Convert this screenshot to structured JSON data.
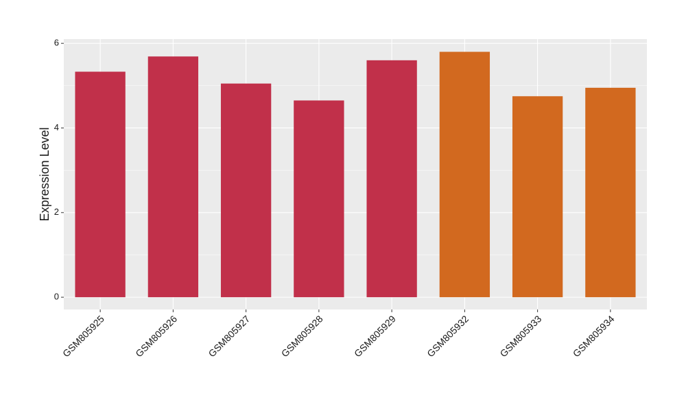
{
  "chart_data": {
    "type": "bar",
    "y_label": "Expression Level",
    "categories": [
      "GSM805925",
      "GSM805926",
      "GSM805927",
      "GSM805928",
      "GSM805929",
      "GSM805932",
      "GSM805933",
      "GSM805934"
    ],
    "values": [
      5.33,
      5.69,
      5.05,
      4.65,
      5.6,
      5.8,
      4.75,
      4.95
    ],
    "colors": [
      "#c1304a",
      "#c1304a",
      "#c1304a",
      "#c1304a",
      "#c1304a",
      "#d2691f",
      "#d2691f",
      "#d2691f"
    ],
    "ylim": [
      -0.29,
      6.1
    ],
    "yticks": [
      0,
      2,
      4,
      6
    ],
    "grid": true
  }
}
